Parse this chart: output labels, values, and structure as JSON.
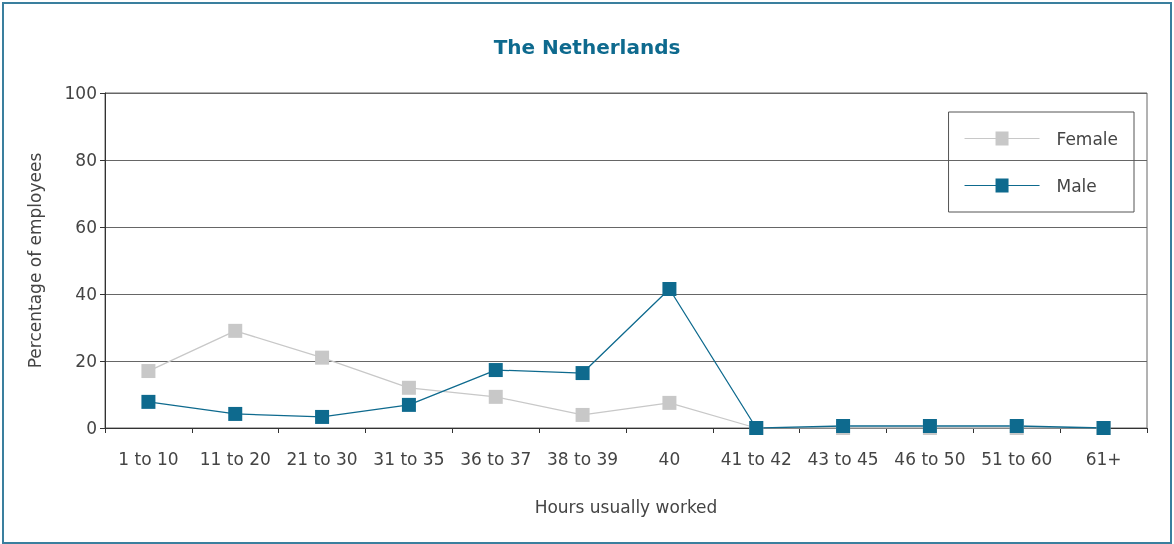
{
  "chart_data": {
    "type": "line",
    "title": "The Netherlands",
    "xlabel": "Hours usually worked",
    "ylabel": "Percentage of employees",
    "categories": [
      "1 to 10",
      "11 to 20",
      "21 to 30",
      "31 to 35",
      "36 to 37",
      "38 to 39",
      "40",
      "41 to 42",
      "43 to 45",
      "46 to 50",
      "51 to 60",
      "61+"
    ],
    "series": [
      {
        "name": "Female",
        "color": "#c8c8c8",
        "values": [
          17,
          29,
          21,
          12,
          9.3,
          3.9,
          7.5,
          0,
          0,
          0,
          0,
          0
        ]
      },
      {
        "name": "Male",
        "color": "#0e6a8e",
        "values": [
          7.8,
          4.2,
          3.3,
          6.9,
          17.3,
          16.4,
          41.5,
          0,
          0.6,
          0.6,
          0.6,
          0
        ]
      }
    ],
    "ylim": [
      0,
      100
    ],
    "yticks": [
      0,
      20,
      40,
      60,
      80,
      100
    ],
    "grid": "y",
    "legend": "top right",
    "marker": "square",
    "line_style": "solid"
  }
}
